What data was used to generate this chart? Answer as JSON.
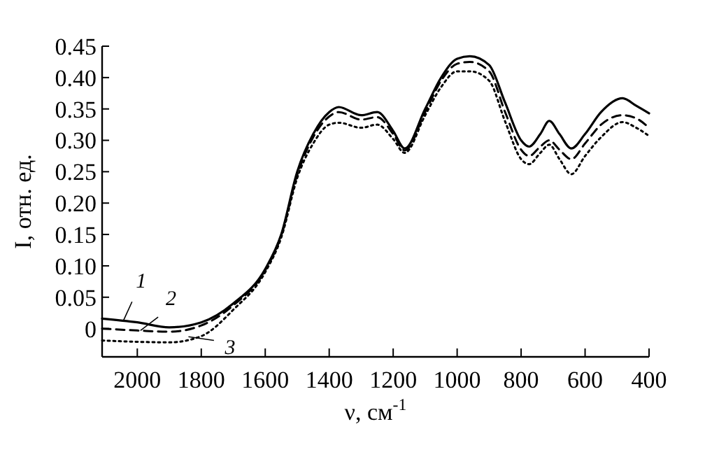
{
  "chart_data": {
    "type": "line",
    "xlabel": "ν, см$^{-1}$",
    "ylabel": "I, отн. ед.",
    "xlim": [
      2110,
      400
    ],
    "xticks": [
      2000,
      1800,
      1600,
      1400,
      1200,
      1000,
      800,
      600,
      400
    ],
    "ylim": [
      -0.045,
      0.45
    ],
    "yticks": [
      0,
      0.05,
      {
        "value": 0.1,
        "label": "0.10"
      },
      0.15,
      {
        "value": 0.2,
        "label": "0.20"
      },
      0.25,
      {
        "value": 0.3,
        "label": "0.30"
      },
      0.35,
      {
        "value": 0.4,
        "label": "0.40"
      },
      0.45
    ],
    "grid": false,
    "marker": "none",
    "series": [
      {
        "color": "#000000",
        "line_style": "solid",
        "x": [
          2110,
          2000,
          1900,
          1800,
          1700,
          1600,
          1550,
          1500,
          1450,
          1400,
          1370,
          1300,
          1250,
          1200,
          1164,
          1100,
          1050,
          1000,
          960,
          900,
          850,
          800,
          775,
          740,
          712,
          680,
          643,
          600,
          550,
          483,
          440,
          400
        ],
        "values": [
          0.016,
          0.01,
          0.002,
          0.01,
          0.04,
          0.095,
          0.15,
          0.25,
          0.31,
          0.345,
          0.353,
          0.34,
          0.345,
          0.315,
          0.287,
          0.35,
          0.4,
          0.43,
          0.434,
          0.42,
          0.36,
          0.3,
          0.29,
          0.31,
          0.331,
          0.31,
          0.287,
          0.31,
          0.345,
          0.367,
          0.355,
          0.343
        ]
      },
      {
        "color": "#000000",
        "line_style": "dashed",
        "x": [
          2110,
          2000,
          1900,
          1800,
          1700,
          1600,
          1550,
          1500,
          1450,
          1400,
          1370,
          1300,
          1250,
          1200,
          1164,
          1100,
          1050,
          1000,
          960,
          900,
          850,
          800,
          775,
          740,
          712,
          680,
          643,
          600,
          550,
          483,
          440,
          400
        ],
        "values": [
          0.0,
          -0.003,
          -0.005,
          0.005,
          0.037,
          0.093,
          0.148,
          0.245,
          0.305,
          0.338,
          0.345,
          0.333,
          0.337,
          0.31,
          0.284,
          0.345,
          0.395,
          0.422,
          0.425,
          0.41,
          0.345,
          0.285,
          0.275,
          0.29,
          0.3,
          0.285,
          0.27,
          0.295,
          0.325,
          0.34,
          0.335,
          0.32
        ]
      },
      {
        "color": "#000000",
        "line_style": "dotted",
        "x": [
          2110,
          2000,
          1900,
          1800,
          1700,
          1600,
          1550,
          1500,
          1450,
          1400,
          1370,
          1300,
          1250,
          1200,
          1164,
          1100,
          1050,
          1000,
          960,
          900,
          850,
          800,
          775,
          740,
          712,
          680,
          643,
          600,
          550,
          483,
          440,
          400
        ],
        "values": [
          -0.019,
          -0.021,
          -0.022,
          -0.012,
          0.03,
          0.09,
          0.145,
          0.24,
          0.295,
          0.325,
          0.328,
          0.32,
          0.325,
          0.302,
          0.28,
          0.34,
          0.385,
          0.41,
          0.41,
          0.395,
          0.33,
          0.27,
          0.262,
          0.28,
          0.293,
          0.27,
          0.246,
          0.275,
          0.305,
          0.329,
          0.32,
          0.307
        ]
      }
    ],
    "annotations": [
      {
        "text": "1",
        "x": 2044,
        "y": 0.012
      },
      {
        "text": "2",
        "x": 1990,
        "y": -0.003
      },
      {
        "text": "3",
        "x": 1840,
        "y": -0.013
      }
    ]
  }
}
